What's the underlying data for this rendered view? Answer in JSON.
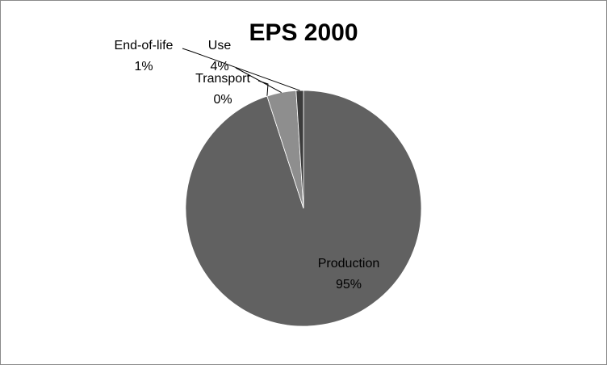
{
  "chart_data": {
    "type": "pie",
    "title": "EPS 2000",
    "categories": [
      "Production",
      "Transport",
      "Use",
      "End-of-life"
    ],
    "values": [
      95,
      0,
      4,
      1
    ],
    "value_labels": [
      "95%",
      "0%",
      "4%",
      "1%"
    ],
    "colors": [
      "#616161",
      "#c8c8c8",
      "#8e8e8e",
      "#3c3c3c"
    ]
  }
}
